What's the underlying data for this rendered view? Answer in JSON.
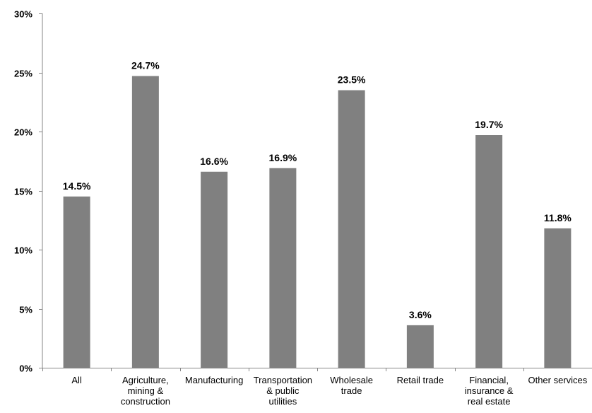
{
  "chart_data": {
    "type": "bar",
    "categories": [
      [
        "All"
      ],
      [
        "Agriculture,",
        "mining &",
        "construction"
      ],
      [
        "Manufacturing"
      ],
      [
        "Transportation",
        "& public",
        "utilities"
      ],
      [
        "Wholesale",
        "trade"
      ],
      [
        "Retail trade"
      ],
      [
        "Financial,",
        "insurance &",
        "real estate"
      ],
      [
        "Other services"
      ]
    ],
    "values": [
      14.5,
      24.7,
      16.6,
      16.9,
      23.5,
      3.6,
      19.7,
      11.8
    ],
    "data_labels": [
      "14.5%",
      "24.7%",
      "16.6%",
      "16.9%",
      "23.5%",
      "3.6%",
      "19.7%",
      "11.8%"
    ],
    "y_ticks": [
      0,
      5,
      10,
      15,
      20,
      25,
      30
    ],
    "y_tick_labels": [
      "0%",
      "5%",
      "10%",
      "15%",
      "20%",
      "25%",
      "30%"
    ],
    "ylim": [
      0,
      30
    ],
    "title": "",
    "xlabel": "",
    "ylabel": "",
    "grid": false,
    "legend": "none",
    "bar_color": "#808080",
    "axis_color": "#868686"
  }
}
